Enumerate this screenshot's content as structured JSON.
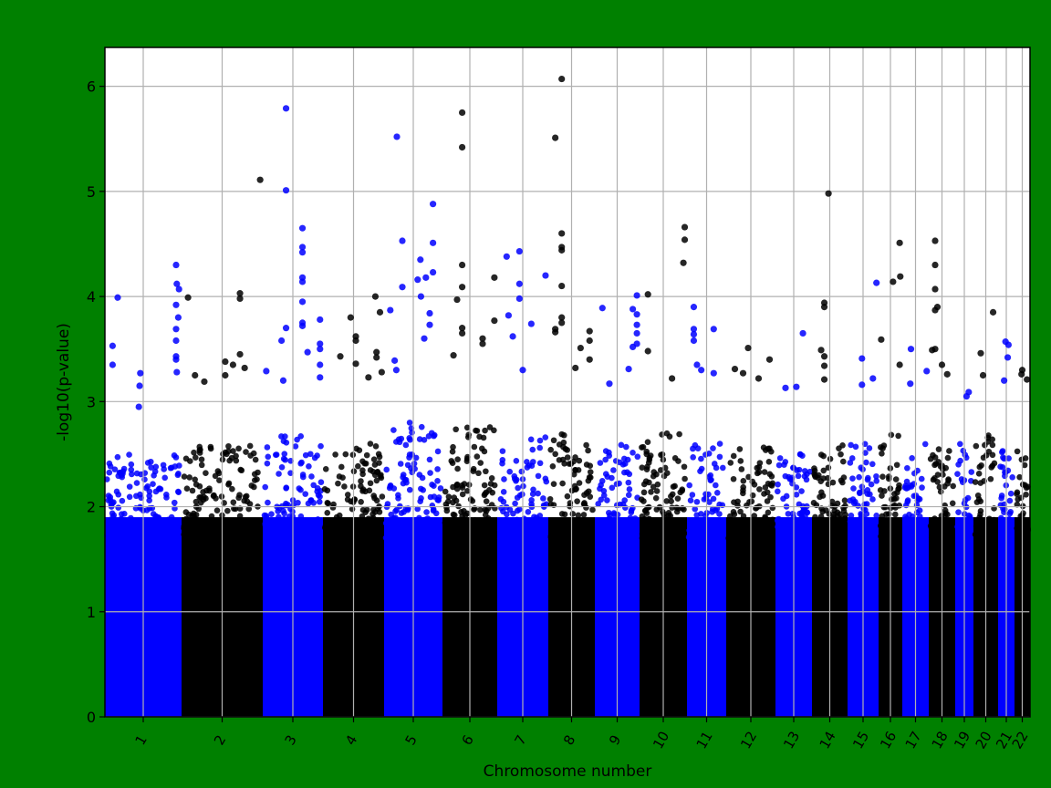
{
  "chart_data": {
    "type": "scatter",
    "subtype": "manhattan",
    "title": "",
    "xlabel": "Chromosome number",
    "ylabel": "-log10(p-value)",
    "ylim": [
      0,
      6.37
    ],
    "yticks": [
      "0",
      "1",
      "2",
      "3",
      "4",
      "5",
      "6"
    ],
    "grid": true,
    "background_color": "#008000",
    "series_colors": [
      "#0000ff",
      "#000000"
    ],
    "chromosomes": [
      {
        "label": "1",
        "color": "#0000ff",
        "bulk_max": 2.5,
        "peaks": [
          [
            0.15,
            3.99
          ],
          [
            0.08,
            3.53
          ],
          [
            0.08,
            3.35
          ],
          [
            0.46,
            3.27
          ],
          [
            0.45,
            3.15
          ],
          [
            0.44,
            2.95
          ],
          [
            0.95,
            4.3
          ],
          [
            0.96,
            4.12
          ],
          [
            0.99,
            4.07
          ],
          [
            0.95,
            3.92
          ],
          [
            0.98,
            3.8
          ],
          [
            0.95,
            3.69
          ],
          [
            0.95,
            3.58
          ],
          [
            0.95,
            3.43
          ],
          [
            0.95,
            3.4
          ],
          [
            0.96,
            3.28
          ]
        ]
      },
      {
        "label": "2",
        "color": "#000000",
        "bulk_max": 2.6,
        "peaks": [
          [
            0.06,
            3.99
          ],
          [
            0.73,
            4.03
          ],
          [
            0.73,
            3.98
          ],
          [
            0.73,
            3.45
          ],
          [
            0.54,
            3.38
          ],
          [
            0.54,
            3.25
          ],
          [
            0.64,
            3.35
          ],
          [
            0.79,
            3.32
          ],
          [
            0.15,
            3.25
          ],
          [
            0.27,
            3.19
          ],
          [
            0.99,
            5.11
          ]
        ]
      },
      {
        "label": "3",
        "color": "#0000ff",
        "bulk_max": 2.7,
        "peaks": [
          [
            0.38,
            5.79
          ],
          [
            0.38,
            5.01
          ],
          [
            0.38,
            3.7
          ],
          [
            0.67,
            4.65
          ],
          [
            0.67,
            4.47
          ],
          [
            0.67,
            4.42
          ],
          [
            0.67,
            4.18
          ],
          [
            0.67,
            4.14
          ],
          [
            0.67,
            3.95
          ],
          [
            0.67,
            3.75
          ],
          [
            0.67,
            3.72
          ],
          [
            0.98,
            3.55
          ],
          [
            0.98,
            3.78
          ],
          [
            0.98,
            3.5
          ],
          [
            0.98,
            3.35
          ],
          [
            0.98,
            3.23
          ],
          [
            0.76,
            3.47
          ],
          [
            0.3,
            3.58
          ],
          [
            0.33,
            3.2
          ],
          [
            0.03,
            3.29
          ]
        ]
      },
      {
        "label": "4",
        "color": "#000000",
        "bulk_max": 2.6,
        "peaks": [
          [
            0.45,
            3.8
          ],
          [
            0.54,
            3.62
          ],
          [
            0.54,
            3.58
          ],
          [
            0.54,
            3.36
          ],
          [
            0.9,
            3.47
          ],
          [
            0.9,
            3.42
          ],
          [
            0.88,
            4.0
          ],
          [
            0.96,
            3.85
          ],
          [
            0.27,
            3.43
          ],
          [
            0.99,
            3.28
          ],
          [
            0.76,
            3.23
          ]
        ]
      },
      {
        "label": "5",
        "color": "#0000ff",
        "bulk_max": 2.8,
        "peaks": [
          [
            0.2,
            5.52
          ],
          [
            0.3,
            4.53
          ],
          [
            0.3,
            4.09
          ],
          [
            0.63,
            4.35
          ],
          [
            0.58,
            4.16
          ],
          [
            0.08,
            3.87
          ],
          [
            0.16,
            3.39
          ],
          [
            0.19,
            3.3
          ],
          [
            0.86,
            4.88
          ],
          [
            0.86,
            4.51
          ],
          [
            0.86,
            4.23
          ],
          [
            0.73,
            4.18
          ],
          [
            0.64,
            4.0
          ],
          [
            0.8,
            3.84
          ],
          [
            0.8,
            3.73
          ],
          [
            0.7,
            3.6
          ]
        ]
      },
      {
        "label": "6",
        "color": "#000000",
        "bulk_max": 2.8,
        "peaks": [
          [
            0.35,
            5.75
          ],
          [
            0.35,
            5.42
          ],
          [
            0.35,
            4.3
          ],
          [
            0.35,
            4.09
          ],
          [
            0.35,
            3.7
          ],
          [
            0.35,
            3.65
          ],
          [
            0.25,
            3.97
          ],
          [
            0.75,
            3.6
          ],
          [
            0.75,
            3.55
          ],
          [
            0.98,
            4.18
          ],
          [
            0.98,
            3.77
          ],
          [
            0.18,
            3.44
          ]
        ]
      },
      {
        "label": "7",
        "color": "#0000ff",
        "bulk_max": 2.7,
        "peaks": [
          [
            0.16,
            4.38
          ],
          [
            0.43,
            4.43
          ],
          [
            0.43,
            4.12
          ],
          [
            0.43,
            3.98
          ],
          [
            0.2,
            3.82
          ],
          [
            0.29,
            3.62
          ],
          [
            0.68,
            3.74
          ],
          [
            0.5,
            3.3
          ],
          [
            0.98,
            4.2
          ]
        ]
      },
      {
        "label": "8",
        "color": "#000000",
        "bulk_max": 2.7,
        "peaks": [
          [
            0.27,
            6.07
          ],
          [
            0.27,
            4.6
          ],
          [
            0.27,
            4.47
          ],
          [
            0.27,
            4.44
          ],
          [
            0.27,
            4.1
          ],
          [
            0.27,
            3.8
          ],
          [
            0.27,
            3.75
          ],
          [
            0.12,
            5.51
          ],
          [
            0.12,
            3.69
          ],
          [
            0.12,
            3.66
          ],
          [
            0.71,
            3.51
          ],
          [
            0.92,
            3.67
          ],
          [
            0.92,
            3.58
          ],
          [
            0.92,
            3.4
          ],
          [
            0.59,
            3.32
          ]
        ]
      },
      {
        "label": "9",
        "color": "#0000ff",
        "bulk_max": 2.6,
        "peaks": [
          [
            0.14,
            3.89
          ],
          [
            0.88,
            3.88
          ],
          [
            0.88,
            3.52
          ],
          [
            0.98,
            4.01
          ],
          [
            0.98,
            3.83
          ],
          [
            0.98,
            3.73
          ],
          [
            0.98,
            3.65
          ],
          [
            0.98,
            3.55
          ],
          [
            0.31,
            3.17
          ],
          [
            0.78,
            3.31
          ]
        ]
      },
      {
        "label": "10",
        "color": "#000000",
        "bulk_max": 2.7,
        "peaks": [
          [
            0.15,
            3.48
          ],
          [
            0.15,
            4.02
          ],
          [
            0.99,
            4.66
          ],
          [
            0.99,
            4.54
          ],
          [
            0.96,
            4.32
          ],
          [
            0.7,
            3.22
          ]
        ]
      },
      {
        "label": "11",
        "color": "#0000ff",
        "bulk_max": 2.6,
        "peaks": [
          [
            0.14,
            3.9
          ],
          [
            0.14,
            3.69
          ],
          [
            0.14,
            3.64
          ],
          [
            0.14,
            3.58
          ],
          [
            0.7,
            3.69
          ],
          [
            0.7,
            3.27
          ],
          [
            0.23,
            3.35
          ],
          [
            0.35,
            3.3
          ]
        ]
      },
      {
        "label": "12",
        "color": "#000000",
        "bulk_max": 2.6,
        "peaks": [
          [
            0.44,
            3.51
          ],
          [
            0.91,
            3.4
          ],
          [
            0.15,
            3.31
          ],
          [
            0.33,
            3.27
          ],
          [
            0.67,
            3.22
          ]
        ]
      },
      {
        "label": "13",
        "color": "#0000ff",
        "bulk_max": 2.5,
        "peaks": [
          [
            0.78,
            3.65
          ],
          [
            0.58,
            3.14
          ],
          [
            0.25,
            3.13
          ]
        ]
      },
      {
        "label": "14",
        "color": "#000000",
        "bulk_max": 2.6,
        "peaks": [
          [
            0.46,
            4.98
          ],
          [
            0.33,
            3.94
          ],
          [
            0.33,
            3.9
          ],
          [
            0.33,
            3.43
          ],
          [
            0.33,
            3.34
          ],
          [
            0.33,
            3.21
          ],
          [
            0.23,
            3.49
          ]
        ]
      },
      {
        "label": "15",
        "color": "#0000ff",
        "bulk_max": 2.6,
        "peaks": [
          [
            0.99,
            4.13
          ],
          [
            0.46,
            3.41
          ],
          [
            0.46,
            3.16
          ],
          [
            0.86,
            3.22
          ]
        ]
      },
      {
        "label": "16",
        "color": "#000000",
        "bulk_max": 2.7,
        "peaks": [
          [
            0.96,
            4.51
          ],
          [
            0.99,
            4.19
          ],
          [
            0.63,
            4.14
          ],
          [
            0.04,
            3.59
          ],
          [
            0.96,
            3.35
          ]
        ]
      },
      {
        "label": "17",
        "color": "#0000ff",
        "bulk_max": 2.6,
        "peaks": [
          [
            0.3,
            3.5
          ],
          [
            0.99,
            3.29
          ],
          [
            0.27,
            3.17
          ]
        ]
      },
      {
        "label": "18",
        "color": "#000000",
        "bulk_max": 2.6,
        "peaks": [
          [
            0.2,
            4.53
          ],
          [
            0.2,
            4.3
          ],
          [
            0.2,
            4.07
          ],
          [
            0.2,
            3.87
          ],
          [
            0.2,
            3.5
          ],
          [
            0.3,
            3.9
          ],
          [
            0.07,
            3.49
          ],
          [
            0.5,
            3.35
          ],
          [
            0.73,
            3.26
          ]
        ]
      },
      {
        "label": "19",
        "color": "#0000ff",
        "bulk_max": 2.6,
        "peaks": [
          [
            0.8,
            3.09
          ],
          [
            0.65,
            3.05
          ]
        ]
      },
      {
        "label": "20",
        "color": "#000000",
        "bulk_max": 2.7,
        "peaks": [
          [
            0.85,
            3.85
          ],
          [
            0.26,
            3.46
          ],
          [
            0.37,
            3.25
          ]
        ]
      },
      {
        "label": "21",
        "color": "#0000ff",
        "bulk_max": 2.6,
        "peaks": [
          [
            0.44,
            3.57
          ],
          [
            0.67,
            3.54
          ],
          [
            0.61,
            3.42
          ],
          [
            0.33,
            3.2
          ]
        ]
      },
      {
        "label": "22",
        "color": "#000000",
        "bulk_max": 2.6,
        "peaks": [
          [
            0.5,
            3.3
          ],
          [
            0.44,
            3.26
          ],
          [
            0.9,
            3.21
          ]
        ]
      }
    ]
  }
}
